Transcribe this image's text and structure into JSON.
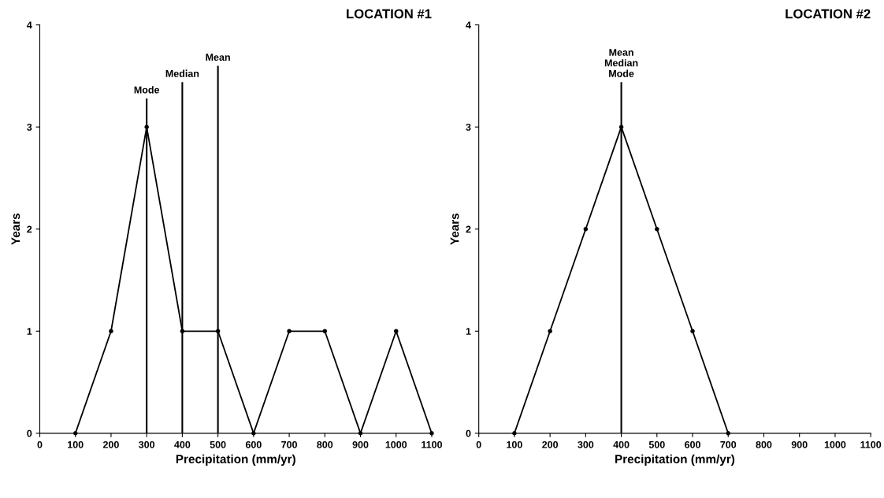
{
  "chart_data": [
    {
      "type": "line",
      "title": "LOCATION #1",
      "xlabel": "Precipitation (mm/yr)",
      "ylabel": "Years",
      "x": [
        100,
        200,
        300,
        400,
        500,
        600,
        700,
        800,
        900,
        1000,
        1100
      ],
      "series": [
        {
          "color": "#000000",
          "values": [
            0,
            1,
            3,
            1,
            1,
            0,
            1,
            1,
            0,
            1,
            0
          ]
        }
      ],
      "xlim": [
        0,
        1100
      ],
      "xticks": [
        0,
        100,
        200,
        300,
        400,
        500,
        600,
        700,
        800,
        900,
        1000,
        1100
      ],
      "ylim": [
        0,
        4
      ],
      "yticks": [
        0,
        1,
        2,
        3,
        4
      ],
      "ref_lines": [
        {
          "axis": "x",
          "value": 300,
          "label": "Mode"
        },
        {
          "axis": "x",
          "value": 400,
          "label": "Median"
        },
        {
          "axis": "x",
          "value": 500,
          "label": "Mean"
        }
      ],
      "grid": false,
      "legend": false,
      "marker": "circle",
      "line_style": "solid"
    },
    {
      "type": "line",
      "title": "LOCATION #2",
      "xlabel": "Precipitation (mm/yr)",
      "ylabel": "Years",
      "x": [
        100,
        200,
        300,
        400,
        500,
        600,
        700
      ],
      "series": [
        {
          "color": "#000000",
          "values": [
            0,
            1,
            2,
            3,
            2,
            1,
            0
          ]
        }
      ],
      "xlim": [
        0,
        1100
      ],
      "xticks": [
        0,
        100,
        200,
        300,
        400,
        500,
        600,
        700,
        800,
        900,
        1000,
        1100
      ],
      "ylim": [
        0,
        4
      ],
      "yticks": [
        0,
        1,
        2,
        3,
        4
      ],
      "ref_lines": [
        {
          "axis": "x",
          "value": 400,
          "label": "Mean\nMedian\nMode"
        }
      ],
      "grid": false,
      "legend": false,
      "marker": "circle",
      "line_style": "solid"
    }
  ]
}
